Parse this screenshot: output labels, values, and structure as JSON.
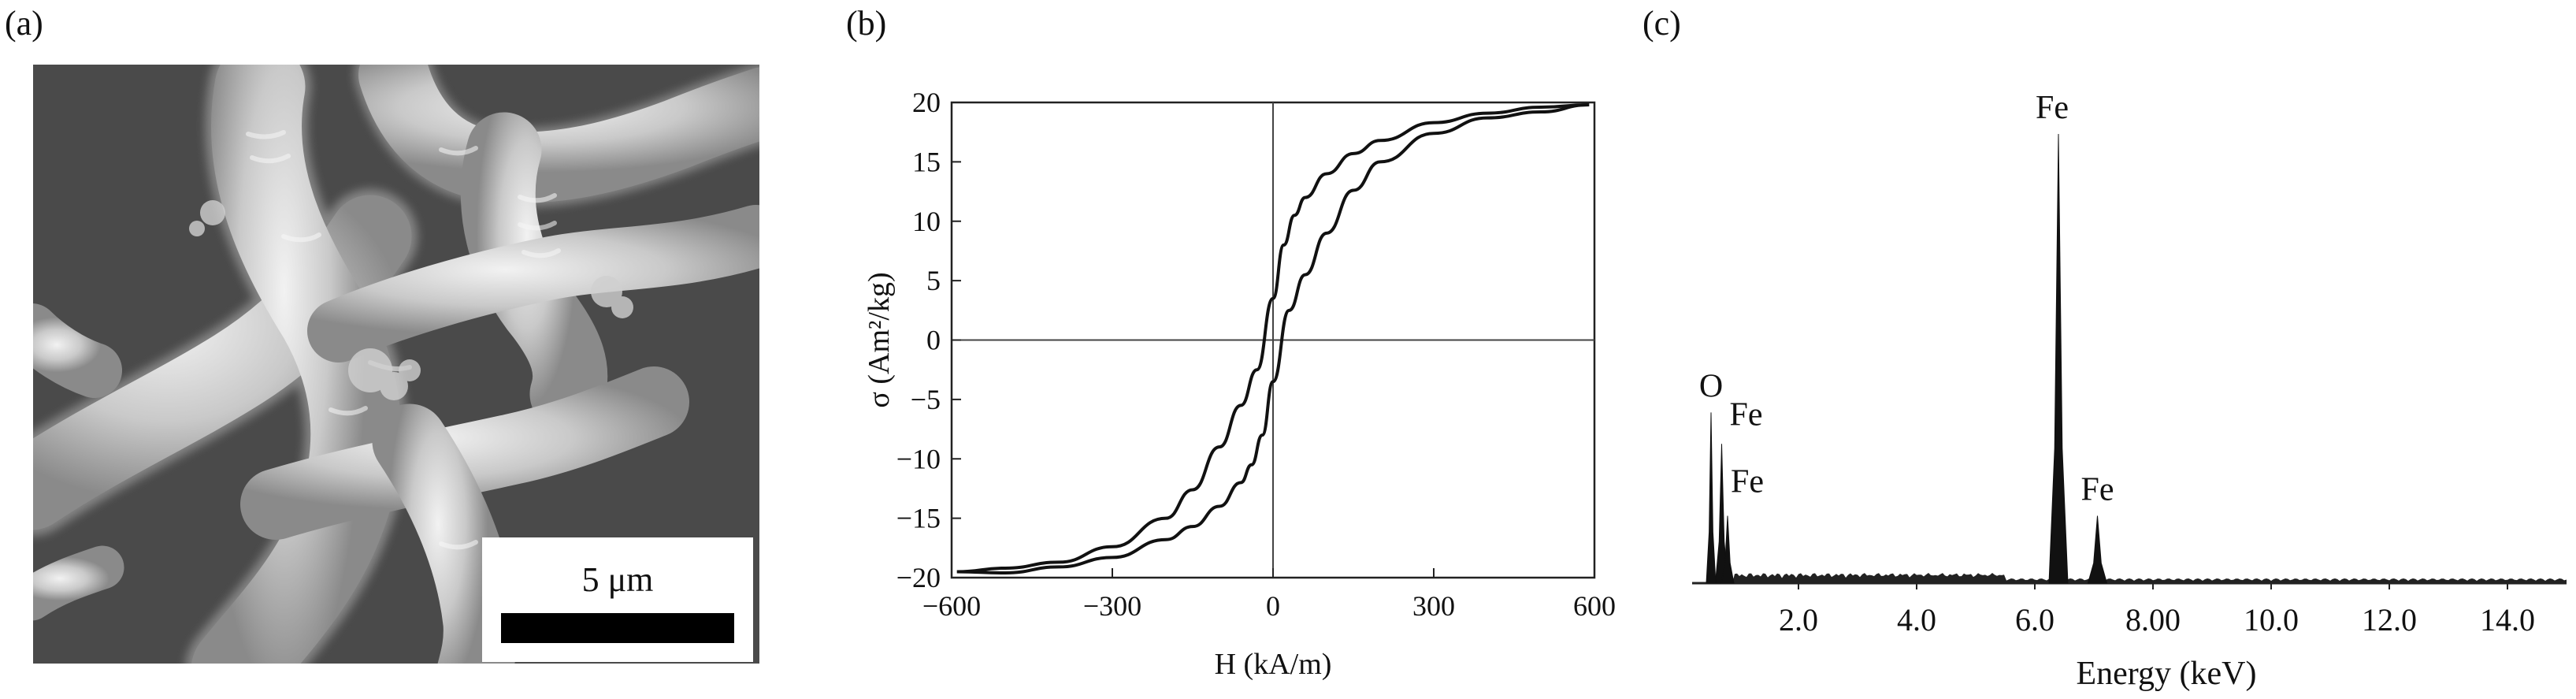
{
  "panels": {
    "a": {
      "label": "(a)",
      "scale_bar": "5 μm"
    },
    "b": {
      "label": "(b)"
    },
    "c": {
      "label": "(c)"
    }
  },
  "chart_data": [
    {
      "type": "line",
      "panel": "b",
      "xlabel": "H (kA/m)",
      "ylabel": "σ (Am²/kg)",
      "xlim": [
        -600,
        600
      ],
      "ylim": [
        -20,
        20
      ],
      "xticks": [
        "−600",
        "−300",
        "0",
        "300",
        "600"
      ],
      "yticks": [
        "20",
        "15",
        "10",
        "5",
        "0",
        "−5",
        "−10",
        "−15",
        "−20"
      ],
      "grid": false,
      "series": [
        {
          "x": [
            -590,
            -500,
            -400,
            -300,
            -200,
            -150,
            -100,
            -60,
            -30,
            0,
            20,
            40,
            60,
            100,
            150,
            200,
            300,
            400,
            500,
            590
          ],
          "y": [
            -19.5,
            -19.2,
            -18.7,
            -17.4,
            -15.0,
            -12.6,
            -9.0,
            -5.5,
            -2.5,
            3.5,
            8.0,
            10.5,
            12.0,
            14.0,
            15.7,
            16.8,
            18.3,
            19.1,
            19.6,
            19.8
          ]
        },
        {
          "x": [
            590,
            500,
            400,
            300,
            200,
            150,
            100,
            60,
            30,
            0,
            -20,
            -40,
            -60,
            -100,
            -150,
            -200,
            -300,
            -400,
            -500,
            -590
          ],
          "y": [
            19.8,
            19.2,
            18.7,
            17.4,
            15.0,
            12.6,
            9.0,
            5.5,
            2.5,
            -3.5,
            -8.0,
            -10.5,
            -12.0,
            -14.0,
            -15.7,
            -16.8,
            -18.3,
            -19.1,
            -19.6,
            -19.5
          ]
        }
      ]
    },
    {
      "type": "area",
      "panel": "c",
      "xlabel": "Energy (keV)",
      "xticks": [
        "2.0",
        "4.0",
        "6.0",
        "8.00",
        "10.0",
        "12.0",
        "14.0"
      ],
      "xlim": [
        0.2,
        15.0
      ],
      "peaks": [
        {
          "label": "O",
          "energy": 0.52,
          "height": 0.38
        },
        {
          "label": "Fe",
          "energy": 0.7,
          "height": 0.31
        },
        {
          "label": "Fe",
          "energy": 0.8,
          "height": 0.15
        },
        {
          "label": "Fe",
          "energy": 6.4,
          "height": 1.0
        },
        {
          "label": "Fe",
          "energy": 7.06,
          "height": 0.15
        }
      ]
    }
  ]
}
